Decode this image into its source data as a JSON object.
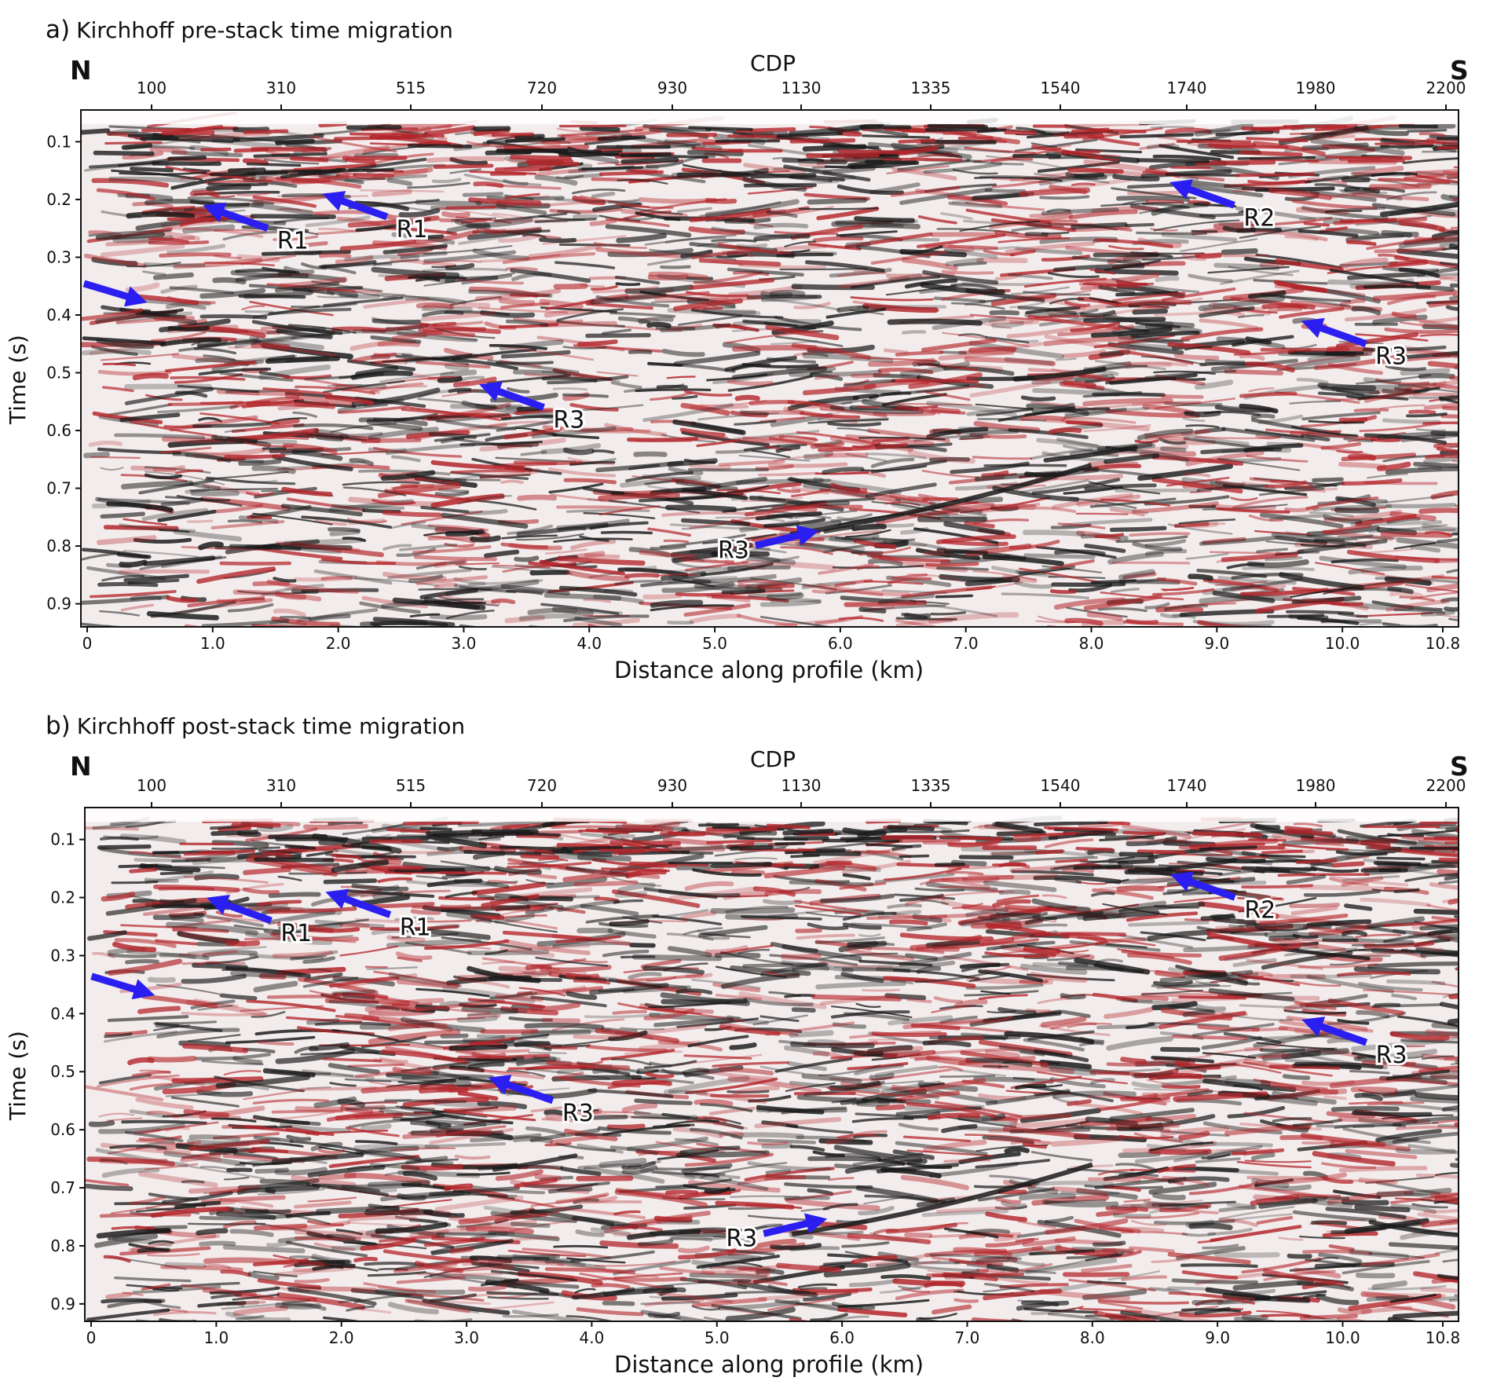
{
  "panels": [
    {
      "id": "a",
      "letter": "a)",
      "title": "Kirchhoff pre-stack time migration",
      "north": "N",
      "south": "S",
      "top_axis_title": "CDP",
      "cdp_ticks": [
        "100",
        "310",
        "515",
        "720",
        "930",
        "1130",
        "1335",
        "1540",
        "1740",
        "1980",
        "2200"
      ],
      "x_ticks": [
        "0",
        "1.0",
        "2.0",
        "3.0",
        "4.0",
        "5.0",
        "6.0",
        "7.0",
        "8.0",
        "9.0",
        "10.0",
        "10.8"
      ],
      "y_ticks": [
        "0.1",
        "0.2",
        "0.3",
        "0.4",
        "0.5",
        "0.6",
        "0.7",
        "0.8",
        "0.9"
      ],
      "xlabel": "Distance along profile (km)",
      "ylabel": "Time (s)",
      "annotations": [
        {
          "label": "R1",
          "x_km": 1.05,
          "t_s": 0.22
        },
        {
          "label": "R1",
          "x_km": 2.0,
          "t_s": 0.2
        },
        {
          "label": "R2",
          "x_km": 8.75,
          "t_s": 0.18
        },
        {
          "label": "",
          "x_km": 0.35,
          "t_s": 0.37
        },
        {
          "label": "R3",
          "x_km": 9.8,
          "t_s": 0.42
        },
        {
          "label": "R3",
          "x_km": 3.25,
          "t_s": 0.53
        },
        {
          "label": "R3",
          "x_km": 5.7,
          "t_s": 0.78
        }
      ]
    },
    {
      "id": "b",
      "letter": "b)",
      "title": "Kirchhoff post-stack time migration",
      "north": "N",
      "south": "S",
      "top_axis_title": "CDP",
      "cdp_ticks": [
        "100",
        "310",
        "515",
        "720",
        "930",
        "1130",
        "1335",
        "1540",
        "1740",
        "1980",
        "2200"
      ],
      "x_ticks": [
        "0",
        "1.0",
        "2.0",
        "3.0",
        "4.0",
        "5.0",
        "6.0",
        "7.0",
        "8.0",
        "9.0",
        "10.0",
        "10.8"
      ],
      "y_ticks": [
        "0.1",
        "0.2",
        "0.3",
        "0.4",
        "0.5",
        "0.6",
        "0.7",
        "0.8",
        "0.9"
      ],
      "xlabel": "Distance along profile (km)",
      "ylabel": "Time (s)",
      "annotations": [
        {
          "label": "R1",
          "x_km": 1.05,
          "t_s": 0.21
        },
        {
          "label": "R1",
          "x_km": 2.0,
          "t_s": 0.2
        },
        {
          "label": "R2",
          "x_km": 8.75,
          "t_s": 0.17
        },
        {
          "label": "",
          "x_km": 0.38,
          "t_s": 0.36
        },
        {
          "label": "R3",
          "x_km": 9.8,
          "t_s": 0.42
        },
        {
          "label": "R3",
          "x_km": 3.3,
          "t_s": 0.52
        },
        {
          "label": "R3",
          "x_km": 5.75,
          "t_s": 0.76
        }
      ]
    }
  ],
  "colors": {
    "arrow": "#2b1ef0",
    "seismic_red": "#b3262b",
    "seismic_black": "#1a1a1a",
    "background": "#ffffff"
  }
}
